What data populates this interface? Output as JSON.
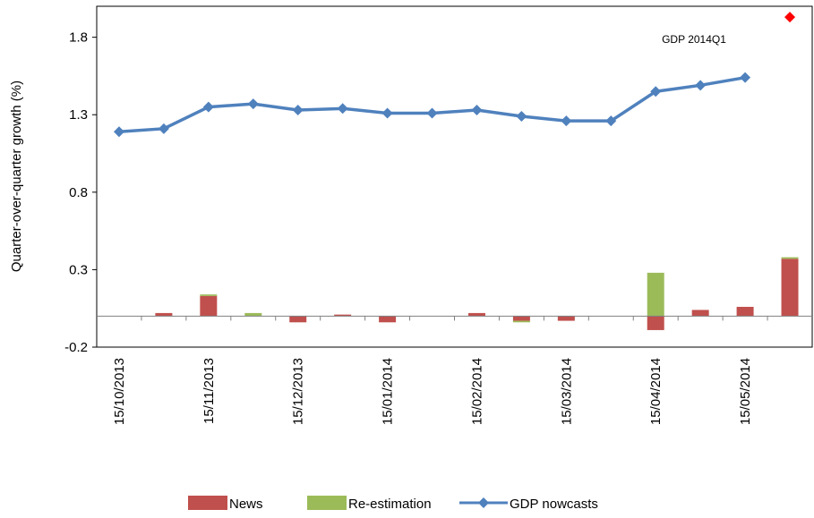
{
  "chart_data": {
    "type": "bar",
    "title": "",
    "xlabel": "",
    "ylabel": "Quarter-over-quarter growth (%)",
    "ylim": [
      -0.2,
      2.0
    ],
    "yticks": [
      -0.2,
      0.3,
      0.8,
      1.3,
      1.8
    ],
    "ytick_labels": [
      "-0.2",
      "0.3",
      "0.8",
      "1.3",
      "1.8"
    ],
    "xtick_labels": [
      "15/10/2013",
      "15/11/2013",
      "15/12/2013",
      "15/01/2014",
      "15/02/2014",
      "15/03/2014",
      "15/04/2014",
      "15/05/2014"
    ],
    "categories": [
      "15/10/2013",
      "",
      "15/11/2013",
      "",
      "15/12/2013",
      "",
      "15/01/2014",
      "",
      "15/02/2014",
      "",
      "15/03/2014",
      "",
      "15/04/2014",
      "",
      "15/05/2014",
      ""
    ],
    "series": [
      {
        "name": "News",
        "kind": "bar",
        "color": "#c0504d",
        "values": [
          0.0,
          0.02,
          0.13,
          0.0,
          -0.04,
          0.01,
          -0.04,
          0.0,
          0.02,
          -0.03,
          -0.03,
          0.0,
          -0.09,
          0.04,
          0.06,
          0.37
        ]
      },
      {
        "name": "Re-estimation",
        "kind": "bar",
        "color": "#9bbb59",
        "values": [
          0.0,
          0.0,
          0.01,
          0.02,
          0.0,
          0.0,
          0.0,
          0.0,
          0.0,
          -0.01,
          0.0,
          0.0,
          0.28,
          0.0,
          0.0,
          0.01
        ]
      },
      {
        "name": "GDP nowcasts",
        "kind": "line",
        "color": "#4f81bd",
        "values": [
          1.19,
          1.21,
          1.35,
          1.37,
          1.33,
          1.34,
          1.31,
          1.31,
          1.33,
          1.29,
          1.26,
          1.26,
          1.45,
          1.49,
          1.54,
          null
        ]
      },
      {
        "name": "GDP 2014Q1",
        "kind": "point",
        "color": "#ff0000",
        "marker": "diamond",
        "values": [
          null,
          null,
          null,
          null,
          null,
          null,
          null,
          null,
          null,
          null,
          null,
          null,
          null,
          null,
          null,
          1.93
        ]
      }
    ],
    "annotations": [
      {
        "text": "GDP 2014Q1"
      }
    ],
    "legend_position": "bottom",
    "grid": false
  }
}
